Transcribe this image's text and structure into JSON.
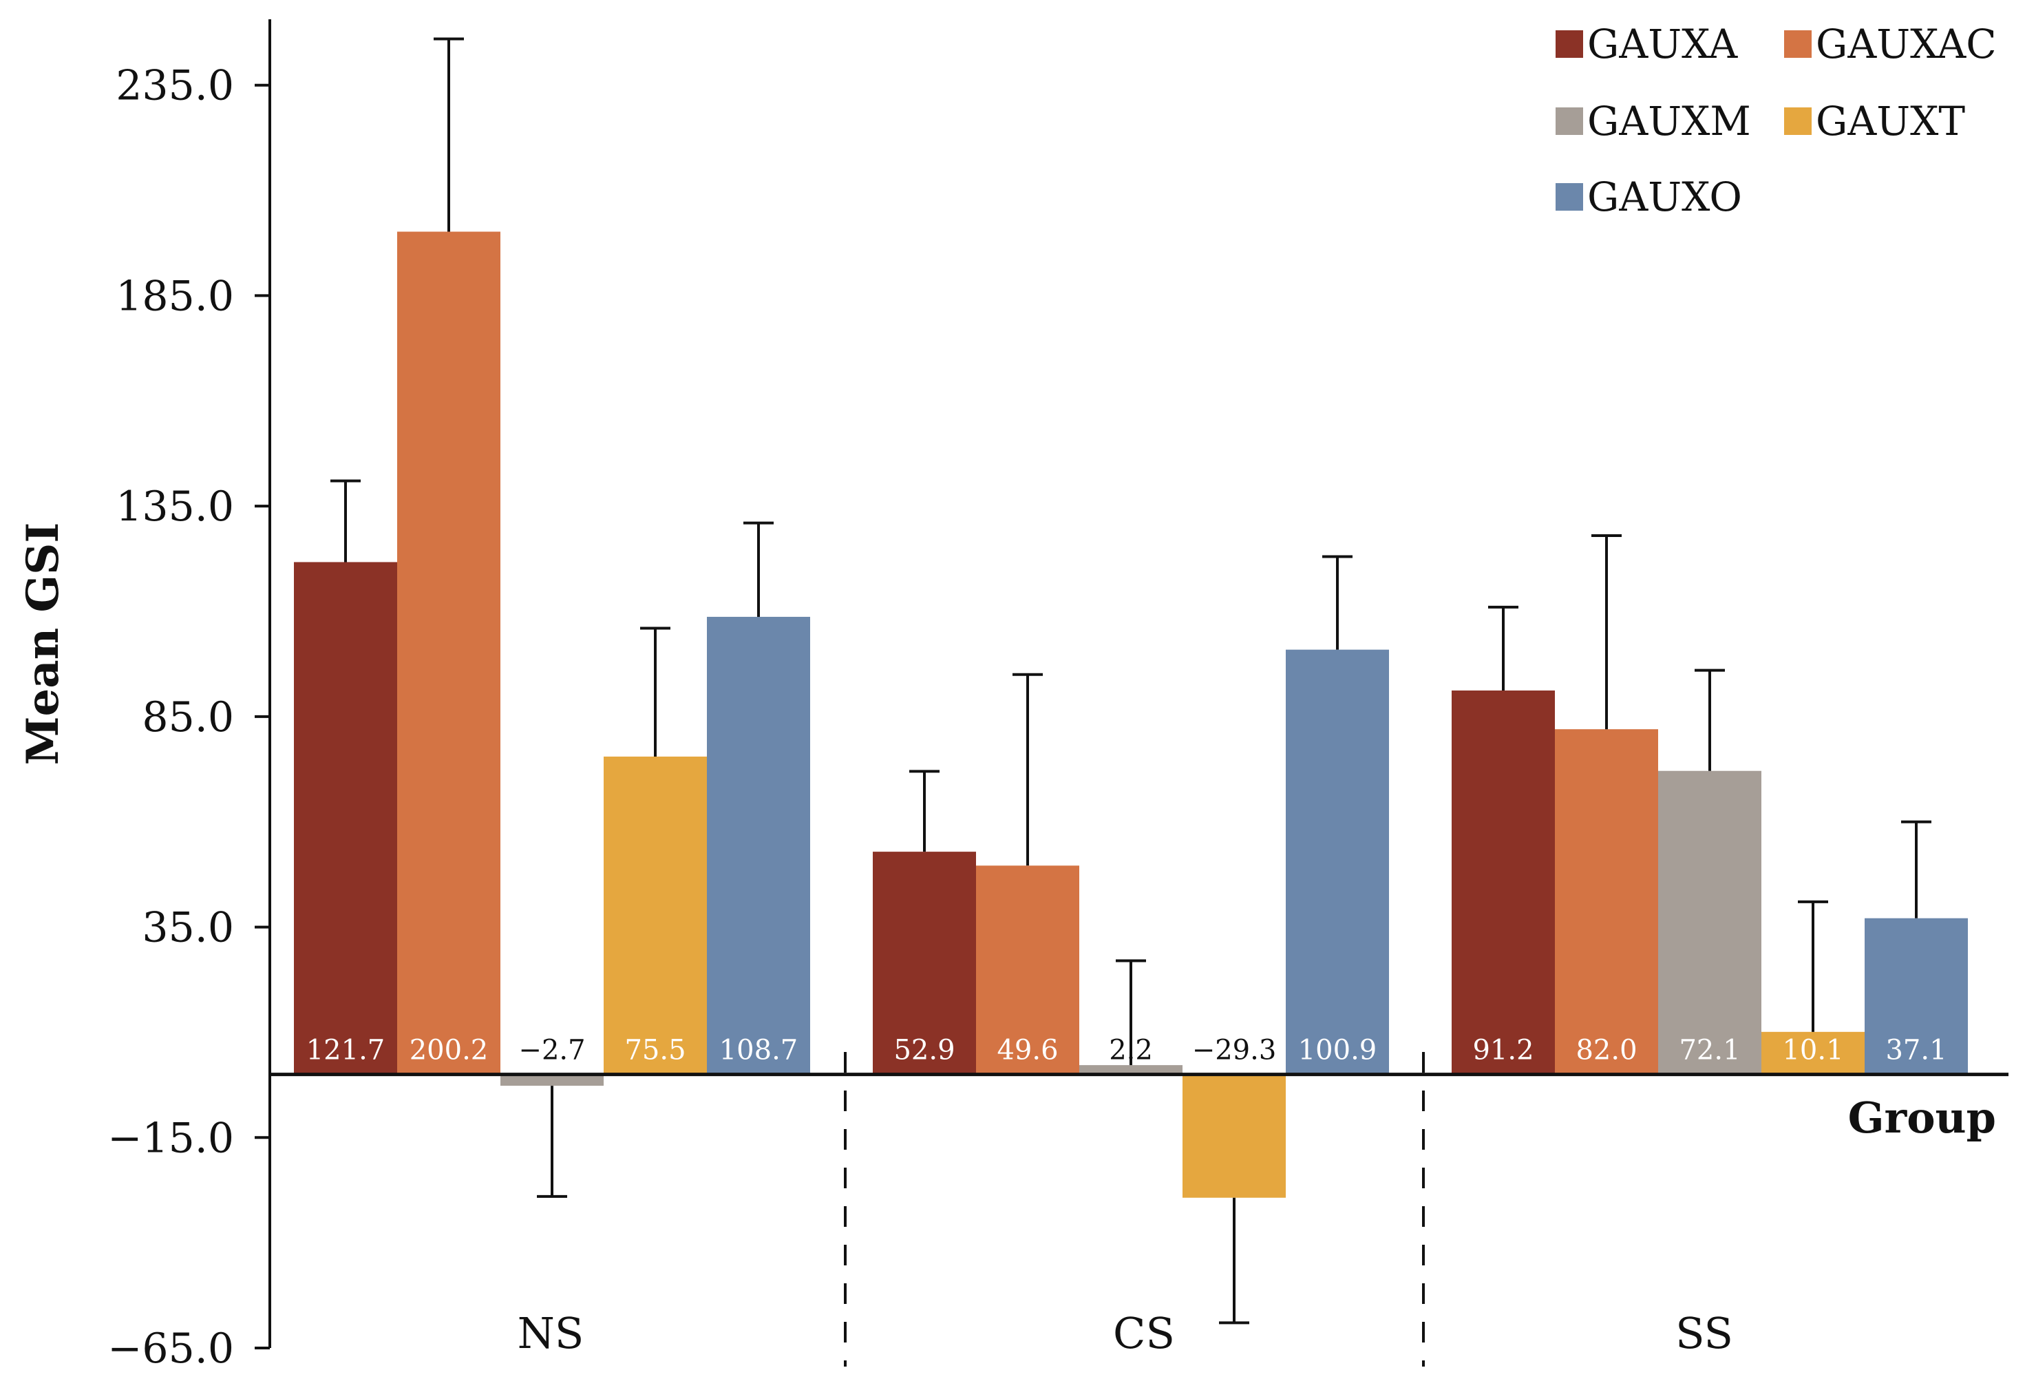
{
  "chart_data": {
    "type": "bar",
    "title": "",
    "xlabel": "Group",
    "ylabel": "Mean GSI",
    "ylim": [
      -65,
      250
    ],
    "yticks": [
      -65,
      -15,
      35,
      85,
      135,
      185,
      235
    ],
    "ytick_labels": [
      "−65.0",
      "−15.0",
      "35.0",
      "85.0",
      "135.0",
      "185.0",
      "235.0"
    ],
    "grid": false,
    "legend_position": "top-right",
    "categories": [
      "NS",
      "CS",
      "SS"
    ],
    "series": [
      {
        "name": "GAUXA",
        "color": "#8b3226",
        "values": [
          121.7,
          52.9,
          91.2
        ],
        "labels": [
          "121.7",
          "52.9",
          "91.2"
        ],
        "error_upper": [
          141,
          72,
          111
        ]
      },
      {
        "name": "GAUXAC",
        "color": "#d47444",
        "values": [
          200.2,
          49.6,
          82.0
        ],
        "labels": [
          "200.2",
          "49.6",
          "82.0"
        ],
        "error_upper": [
          246,
          95,
          128
        ]
      },
      {
        "name": "GAUXM",
        "color": "#a69e97",
        "values": [
          -2.7,
          2.2,
          72.1
        ],
        "labels": [
          "−2.7",
          "2.2",
          "72.1"
        ],
        "error_upper": [
          -29,
          27,
          96
        ]
      },
      {
        "name": "GAUXT",
        "color": "#e5a73f",
        "values": [
          75.5,
          -29.3,
          10.1
        ],
        "labels": [
          "75.5",
          "−29.3",
          "10.1"
        ],
        "error_upper": [
          106,
          -59,
          41
        ]
      },
      {
        "name": "GAUXO",
        "color": "#6b87ab",
        "values": [
          108.7,
          100.9,
          37.1
        ],
        "labels": [
          "108.7",
          "100.9",
          "37.1"
        ],
        "error_upper": [
          131,
          123,
          60
        ]
      }
    ]
  }
}
